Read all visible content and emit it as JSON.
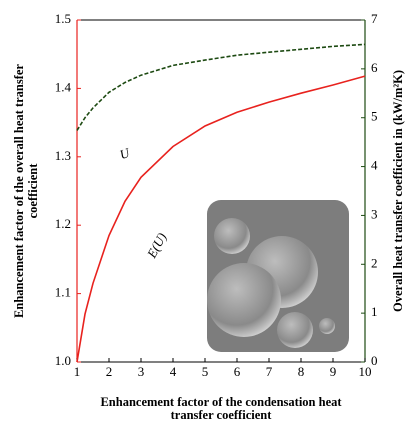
{
  "chart_data": {
    "type": "line",
    "x_label": [
      "Enhancement factor of the condensation heat",
      "transfer coefficient"
    ],
    "y_label": [
      "Enhancement factor of the overall heat transfer",
      "coefficient"
    ],
    "y2_label": "Overall heat transfer coefficient in (kW/m²K)",
    "x": [
      1,
      1.25,
      1.5,
      2,
      2.5,
      3,
      4,
      5,
      6,
      7,
      8,
      9,
      10
    ],
    "series": [
      {
        "name": "E(U)",
        "color": "#e8221e",
        "dashed": false,
        "axis": "y",
        "values": [
          1.0,
          1.07,
          1.115,
          1.185,
          1.235,
          1.27,
          1.315,
          1.345,
          1.365,
          1.38,
          1.393,
          1.405,
          1.418
        ]
      },
      {
        "name": "U",
        "color": "#1d4a12",
        "dashed": true,
        "axis": "y2",
        "values": [
          4.74,
          5.0,
          5.2,
          5.52,
          5.72,
          5.87,
          6.07,
          6.18,
          6.28,
          6.34,
          6.4,
          6.46,
          6.5
        ]
      }
    ],
    "xlim": [
      1,
      10
    ],
    "xticks": [
      1,
      2,
      3,
      4,
      5,
      6,
      7,
      8,
      9,
      10
    ],
    "ylim": [
      1.0,
      1.5
    ],
    "yticks": [
      {
        "value": 1.0,
        "label": "1.0"
      },
      1.1,
      1.2,
      1.3,
      1.4,
      1.5
    ],
    "y2lim": [
      0,
      7
    ],
    "y2ticks": [
      0,
      1,
      2,
      3,
      4,
      5,
      6,
      7
    ],
    "y2color": "#1d4a12",
    "ycolor": "#e8221e"
  }
}
